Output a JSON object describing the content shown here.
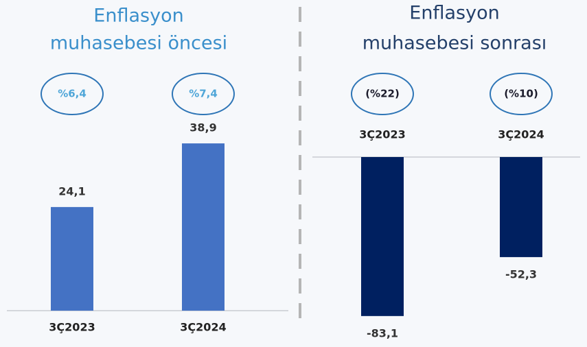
{
  "chart_data": [
    {
      "type": "bar",
      "title": [
        "Enflasyon",
        "muhasebesi öncesi"
      ],
      "categories": [
        "3Ç2023",
        "3Ç2024"
      ],
      "values": [
        24.1,
        38.9
      ],
      "value_labels": [
        "24,1",
        "38,9"
      ],
      "annotations": [
        "%6,4",
        "%7,4"
      ],
      "color": "#4472c4"
    },
    {
      "type": "bar",
      "title": [
        "Enflasyon",
        "muhasebesi sonrası"
      ],
      "categories": [
        "3Ç2023",
        "3Ç2024"
      ],
      "values": [
        -83.1,
        -52.3
      ],
      "value_labels": [
        "-83,1",
        "-52,3"
      ],
      "annotations": [
        "(%22)",
        "(%10)"
      ],
      "color": "#002060"
    }
  ]
}
